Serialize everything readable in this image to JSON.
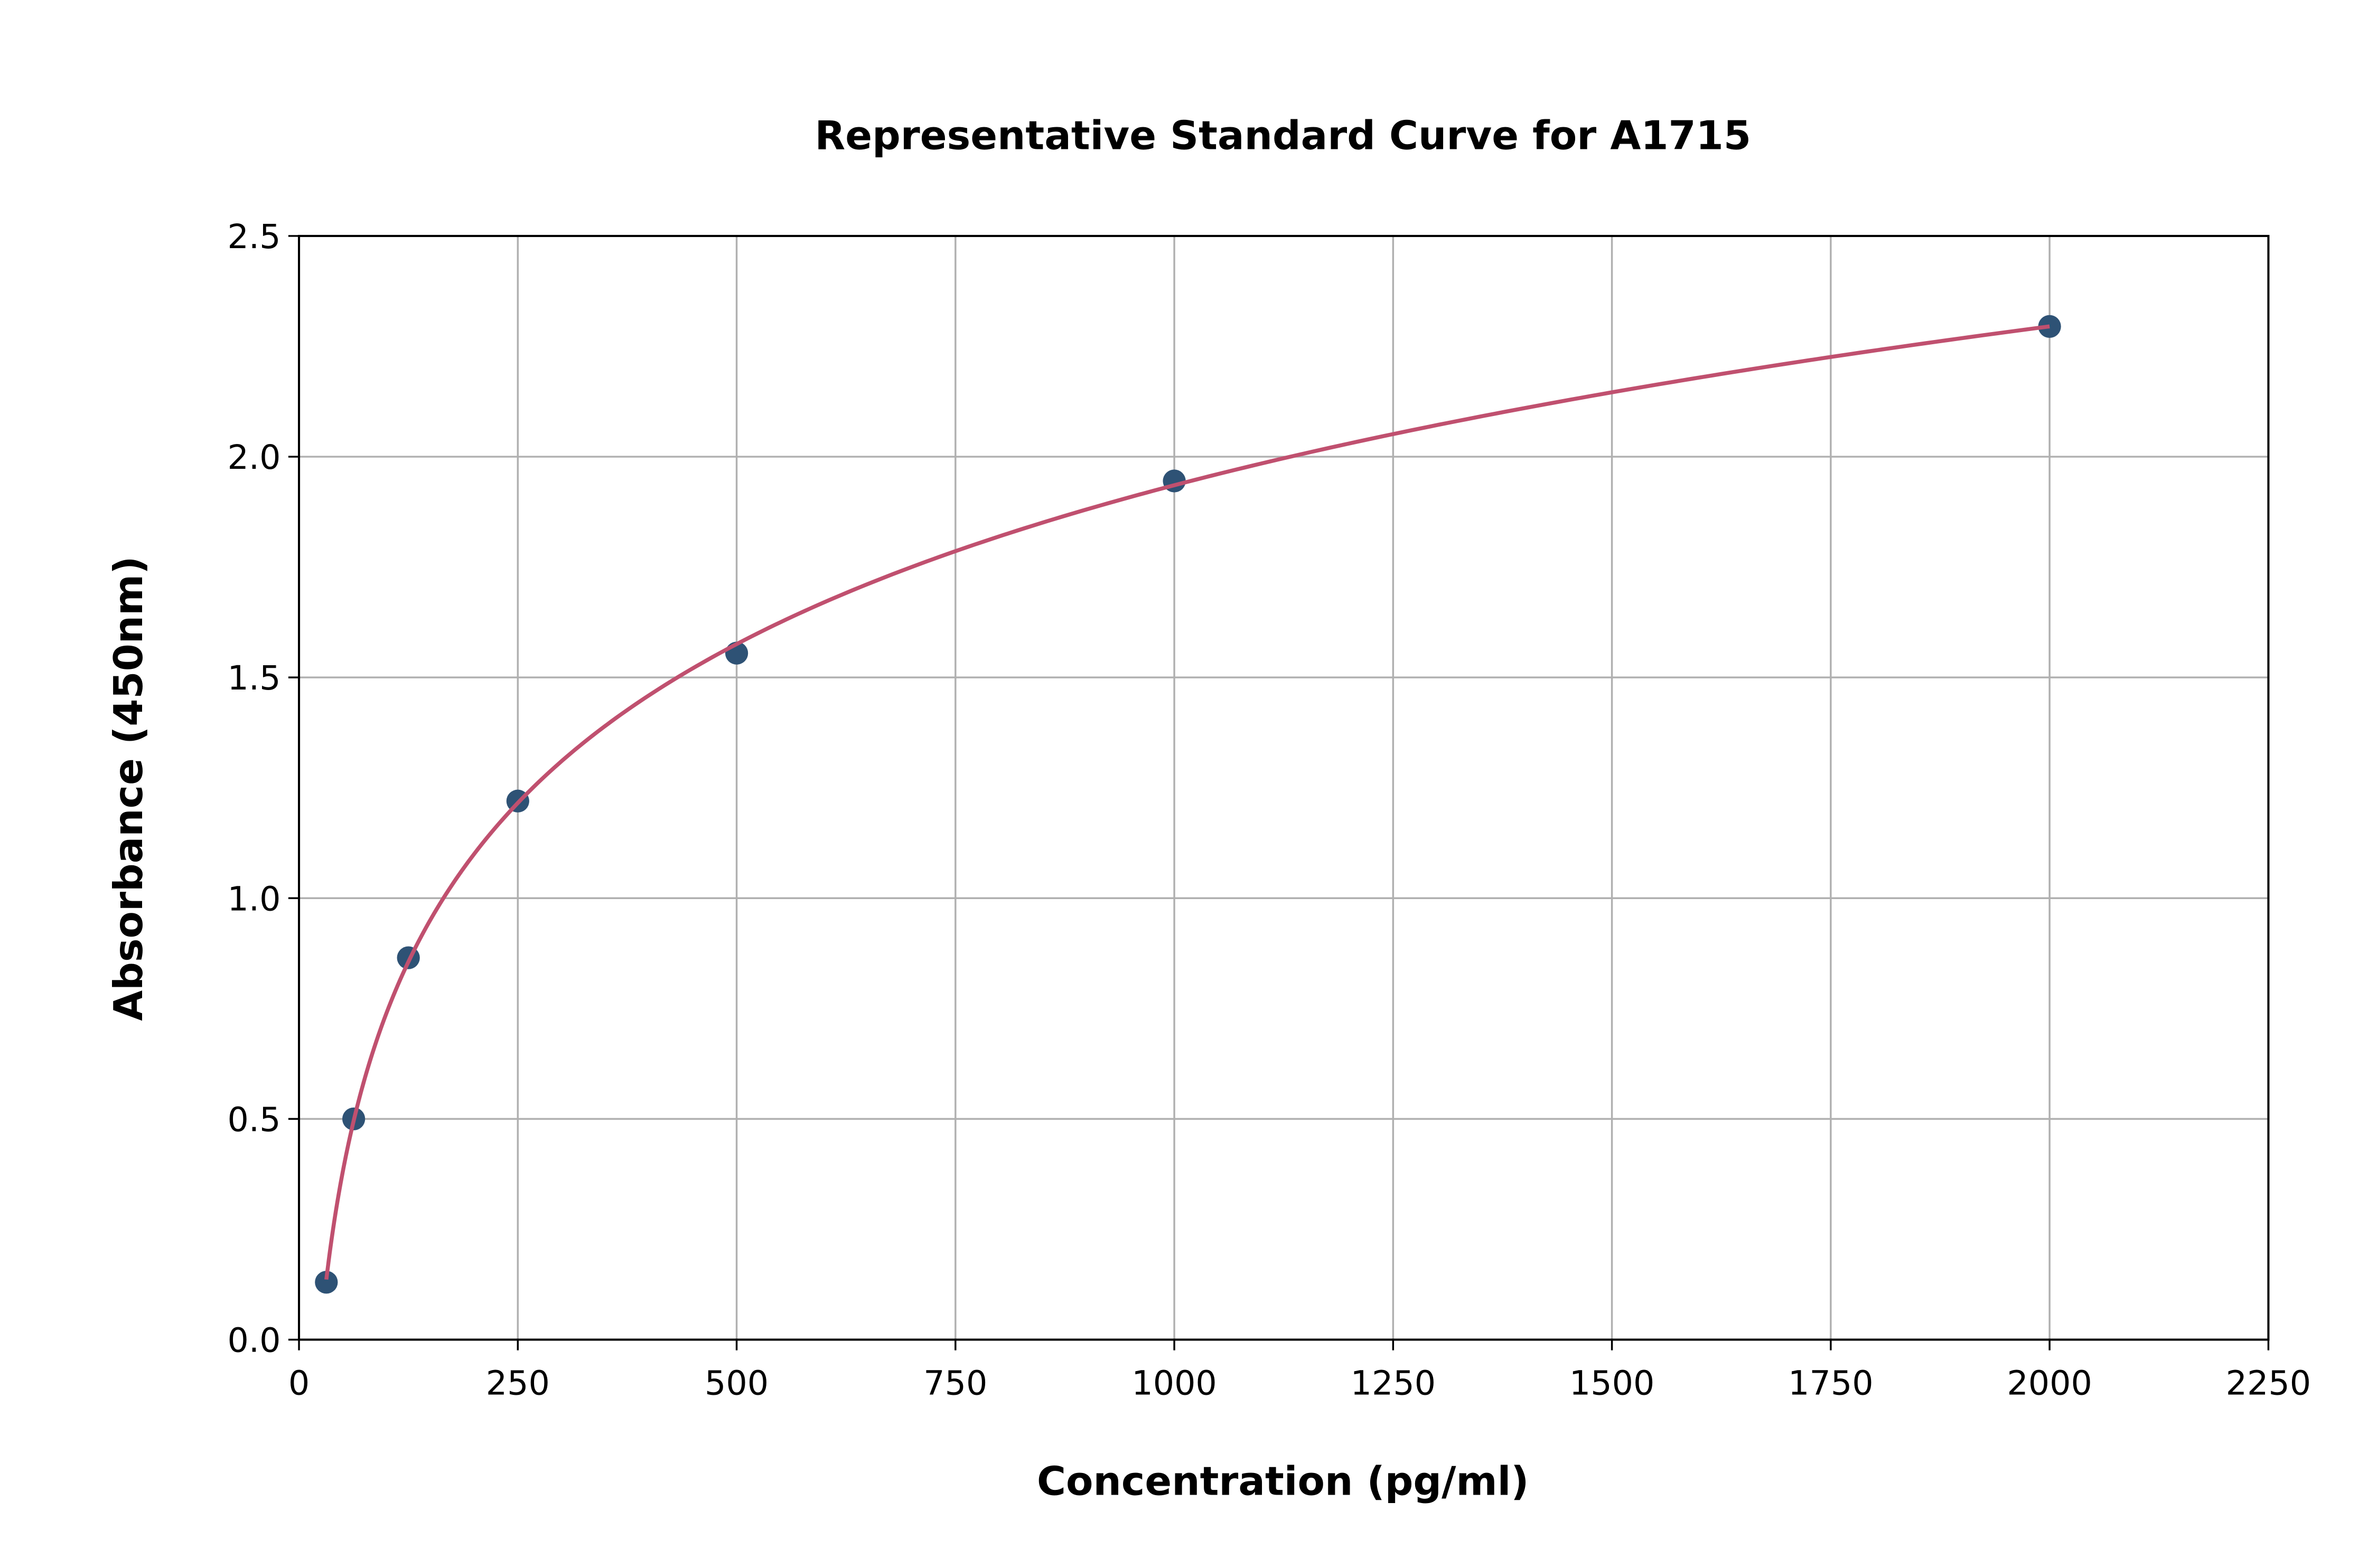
{
  "chart_data": {
    "type": "scatter",
    "title": "Representative Standard Curve for A1715",
    "xlabel": "Concentration (pg/ml)",
    "ylabel": "Absorbance (450nm)",
    "xlim": [
      0,
      2250
    ],
    "ylim": [
      0,
      2.5
    ],
    "xticks": [
      "0",
      "250",
      "500",
      "750",
      "1000",
      "1250",
      "1500",
      "1750",
      "2000",
      "2250"
    ],
    "yticks": [
      "0.0",
      "0.5",
      "1.0",
      "1.5",
      "2.0",
      "2.5"
    ],
    "grid": true,
    "x": [
      31.25,
      62.5,
      125,
      250,
      500,
      1000,
      2000
    ],
    "y": [
      0.13,
      0.5,
      0.865,
      1.22,
      1.555,
      1.945,
      2.295
    ],
    "fit_curve": "smooth fitted curve through standards",
    "colors": {
      "points": "#2e5275",
      "curve": "#c0506f"
    }
  }
}
